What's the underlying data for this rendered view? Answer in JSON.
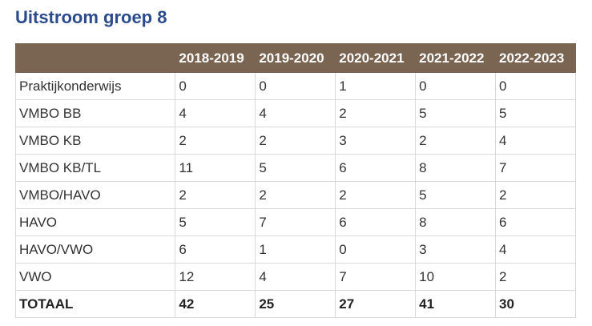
{
  "title": "Uitstroom groep 8",
  "table": {
    "headers": [
      "",
      "2018-2019",
      "2019-2020",
      "2020-2021",
      "2021-2022",
      "2022-2023"
    ],
    "rows": [
      [
        "Praktijkonderwijs",
        "0",
        "0",
        "1",
        "0",
        "0"
      ],
      [
        "VMBO BB",
        "4",
        "4",
        "2",
        "5",
        "5"
      ],
      [
        "VMBO KB",
        "2",
        "2",
        "3",
        "2",
        "4"
      ],
      [
        "VMBO KB/TL",
        "11",
        "5",
        "6",
        "8",
        "7"
      ],
      [
        "VMBO/HAVO",
        "2",
        "2",
        "2",
        "5",
        "2"
      ],
      [
        "HAVO",
        "5",
        "7",
        "6",
        "8",
        "6"
      ],
      [
        "HAVO/VWO",
        "6",
        "1",
        "0",
        "3",
        "4"
      ],
      [
        "VWO",
        "12",
        "4",
        "7",
        "10",
        "2"
      ],
      [
        "TOTAAL",
        "42",
        "25",
        "27",
        "41",
        "30"
      ]
    ]
  },
  "colors": {
    "title": "#2b4b8c",
    "header_bg": "#7a6552",
    "border": "#d9d9d9"
  }
}
